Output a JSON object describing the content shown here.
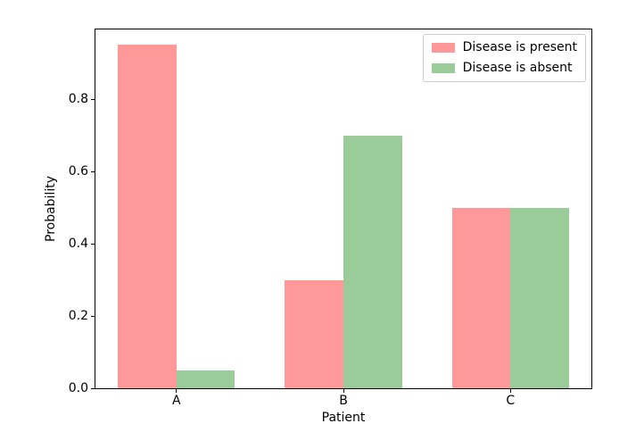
{
  "figure": {
    "background": "#ffffff",
    "spine_color": "#000000",
    "legend_border_color": "#cccccc"
  },
  "chart_data": {
    "type": "bar",
    "title": "",
    "xlabel": "Patient",
    "ylabel": "Probability",
    "categories": [
      "A",
      "B",
      "C"
    ],
    "series": [
      {
        "name": "Disease is present",
        "values": [
          0.95,
          0.3,
          0.5
        ],
        "color": "#ff9999",
        "offset": -0.175
      },
      {
        "name": "Disease is absent",
        "values": [
          0.05,
          0.7,
          0.5
        ],
        "color": "#99cc99",
        "offset": 0.175
      }
    ],
    "bar_width": 0.35,
    "xlim": [
      -0.485,
      2.485
    ],
    "ylim": [
      0,
      0.9926
    ],
    "yticks": {
      "values": [
        0.0,
        0.2,
        0.4,
        0.6,
        0.8
      ],
      "labels": [
        "0.0",
        "0.2",
        "0.4",
        "0.6",
        "0.8"
      ]
    },
    "grid": false,
    "legend": {
      "position": "upper right"
    }
  }
}
